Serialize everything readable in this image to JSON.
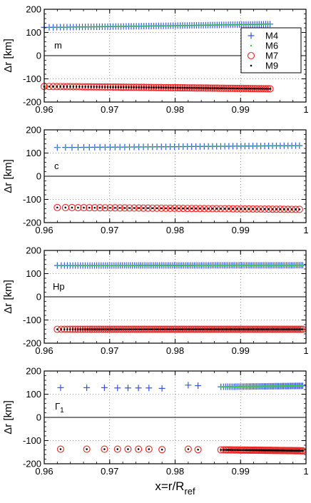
{
  "chart_data": [
    {
      "type": "scatter",
      "panel_label": "m",
      "ylabel": "Δr [km]",
      "xlim": [
        0.96,
        1.0
      ],
      "ylim": [
        -200,
        200
      ],
      "xticks": [
        "0.96",
        "0.97",
        "0.98",
        "0.99",
        "1"
      ],
      "yticks": [
        "-200",
        "-100",
        "0",
        "100",
        "200"
      ],
      "grid": "dotted",
      "legend": {
        "placement": "top-right",
        "entries": [
          "M4",
          "M6",
          "M7",
          "M9"
        ]
      },
      "series": [
        {
          "name": "M4",
          "marker": "plus",
          "color": "#3355ee",
          "x_range": [
            0.96,
            0.9945
          ],
          "count": 90,
          "y_start": 122,
          "y_end": 136
        },
        {
          "name": "M6",
          "marker": "dot",
          "color": "#33cc33",
          "x_range": [
            0.96,
            0.9945
          ],
          "count": 90,
          "y_start": 122,
          "y_end": 136
        },
        {
          "name": "M7",
          "marker": "circle",
          "color": "#ee2222",
          "x_range": [
            0.96,
            0.9945
          ],
          "count": 90,
          "y_start": -133,
          "y_end": -143
        },
        {
          "name": "M9",
          "marker": "dot",
          "color": "#000000",
          "x_range": [
            0.96,
            0.9945
          ],
          "count": 90,
          "y_start": -133,
          "y_end": -143
        }
      ]
    },
    {
      "type": "scatter",
      "panel_label": "c",
      "ylabel": "Δr [km]",
      "xlim": [
        0.96,
        1.0
      ],
      "ylim": [
        -200,
        200
      ],
      "xticks": [
        "0.96",
        "0.97",
        "0.98",
        "0.99",
        "1"
      ],
      "yticks": [
        "-200",
        "-100",
        "0",
        "100",
        "200"
      ],
      "grid": "dotted",
      "series": [
        {
          "name": "M4",
          "marker": "plus",
          "color": "#3355ee",
          "x_range": [
            0.962,
            0.999
          ],
          "count": 55,
          "y_start": 124,
          "y_end": 132
        },
        {
          "name": "M6",
          "marker": "dot",
          "color": "#33cc33",
          "x_range": [
            0.962,
            0.999
          ],
          "count": 55,
          "y_start": 124,
          "y_end": 132
        },
        {
          "name": "M7",
          "marker": "circle",
          "color": "#ee2222",
          "x_range": [
            0.962,
            0.999
          ],
          "count": 55,
          "y_start": -135,
          "y_end": -143
        },
        {
          "name": "M9",
          "marker": "dot",
          "color": "#000000",
          "x_range": [
            0.962,
            0.999
          ],
          "count": 55,
          "y_start": -135,
          "y_end": -143
        }
      ]
    },
    {
      "type": "scatter",
      "panel_label": "Hp",
      "ylabel": "Δr [km]",
      "xlim": [
        0.96,
        1.0
      ],
      "ylim": [
        -200,
        200
      ],
      "xticks": [
        "0.96",
        "0.97",
        "0.98",
        "0.99",
        "1"
      ],
      "yticks": [
        "-200",
        "-100",
        "0",
        "100",
        "200"
      ],
      "grid": "dotted",
      "series": [
        {
          "name": "M4",
          "marker": "plus",
          "color": "#3355ee",
          "x_range": [
            0.962,
            0.9995
          ],
          "count": 130,
          "y_start": 135,
          "y_end": 136
        },
        {
          "name": "M6",
          "marker": "dot",
          "color": "#33cc33",
          "x_range": [
            0.962,
            0.9995
          ],
          "count": 130,
          "y_start": 135,
          "y_end": 136
        },
        {
          "name": "M7",
          "marker": "circle",
          "color": "#ee2222",
          "x_range": [
            0.962,
            0.9995
          ],
          "count": 130,
          "y_start": -140,
          "y_end": -140
        },
        {
          "name": "M9",
          "marker": "dot",
          "color": "#000000",
          "x_range": [
            0.962,
            0.9995
          ],
          "count": 130,
          "y_start": -140,
          "y_end": -140
        }
      ]
    },
    {
      "type": "scatter",
      "panel_label": "Γ",
      "panel_label_sub": "1",
      "ylabel": "Δr [km]",
      "xlabel": "x=r/R",
      "xlabel_sub": "ref",
      "xlim": [
        0.96,
        1.0
      ],
      "ylim": [
        -200,
        200
      ],
      "xticks": [
        "0.96",
        "0.97",
        "0.98",
        "0.99",
        "1"
      ],
      "yticks": [
        "-200",
        "-100",
        "0",
        "100",
        "200"
      ],
      "grid": "dotted",
      "series": [
        {
          "name": "M4",
          "marker": "plus",
          "color": "#3355ee",
          "x": [
            0.9625,
            0.9665,
            0.9692,
            0.9712,
            0.9728,
            0.9744,
            0.976,
            0.978,
            0.982,
            0.9835
          ],
          "y": [
            128,
            128,
            128,
            127,
            127,
            127,
            127,
            125,
            139,
            137
          ],
          "x_range": [
            0.987,
            0.9995
          ],
          "count": 60,
          "y_start": 132,
          "y_end": 136
        },
        {
          "name": "M6",
          "marker": "dot",
          "color": "#33cc33",
          "x_range": [
            0.987,
            0.9995
          ],
          "count": 60,
          "y_start": 132,
          "y_end": 136
        },
        {
          "name": "M7",
          "marker": "circle",
          "color": "#ee2222",
          "x": [
            0.9625,
            0.9665,
            0.9692,
            0.9712,
            0.9728,
            0.9744,
            0.976,
            0.978,
            0.982,
            0.9835
          ],
          "y": [
            -137,
            -137,
            -137,
            -137,
            -137,
            -137,
            -137,
            -139,
            -137,
            -139
          ],
          "x_range": [
            0.987,
            0.9995
          ],
          "count": 60,
          "y_start": -140,
          "y_end": -144
        },
        {
          "name": "M9",
          "marker": "dot",
          "color": "#000000",
          "x": [
            0.9625,
            0.9665,
            0.9692,
            0.9712,
            0.9728,
            0.9744,
            0.976,
            0.978,
            0.982,
            0.9835
          ],
          "y": [
            -137,
            -137,
            -137,
            -137,
            -137,
            -137,
            -137,
            -139,
            -137,
            -139
          ],
          "x_range": [
            0.987,
            0.9995
          ],
          "count": 60,
          "y_start": -140,
          "y_end": -144
        }
      ]
    }
  ]
}
